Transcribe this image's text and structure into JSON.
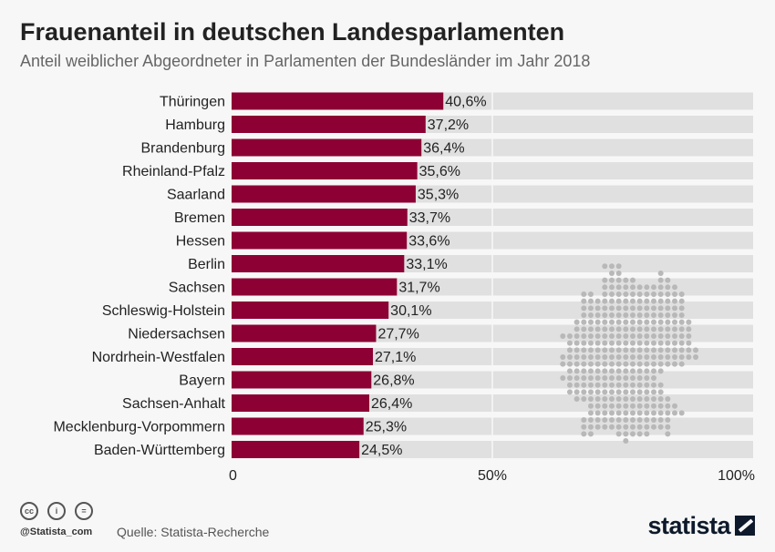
{
  "header": {
    "title": "Frauenanteil in deutschen Landesparlamenten",
    "subtitle": "Anteil weiblicher Abgeordneter in Parlamenten der Bundesländer im Jahr 2018"
  },
  "chart_data": {
    "type": "bar",
    "orientation": "horizontal",
    "categories": [
      "Thüringen",
      "Hamburg",
      "Brandenburg",
      "Rheinland-Pfalz",
      "Saarland",
      "Bremen",
      "Hessen",
      "Berlin",
      "Sachsen",
      "Schleswig-Holstein",
      "Niedersachsen",
      "Nordrhein-Westfalen",
      "Bayern",
      "Sachsen-Anhalt",
      "Mecklenburg-Vorpommern",
      "Baden-Württemberg"
    ],
    "values": [
      40.6,
      37.2,
      36.4,
      35.6,
      35.3,
      33.7,
      33.6,
      33.1,
      31.7,
      30.1,
      27.7,
      27.1,
      26.8,
      26.4,
      25.3,
      24.5
    ],
    "value_labels": [
      "40,6%",
      "37,2%",
      "36,4%",
      "35,6%",
      "35,3%",
      "33,7%",
      "33,6%",
      "33,1%",
      "31,7%",
      "30,1%",
      "27,7%",
      "27,1%",
      "26,8%",
      "26,4%",
      "25,3%",
      "24,5%"
    ],
    "xlim": [
      0,
      100
    ],
    "xticks": [
      0,
      50,
      100
    ],
    "xtick_labels": [
      "0",
      "50%",
      "100%"
    ],
    "bar_color": "#8c0034",
    "track_color": "#e0e0e0"
  },
  "footer": {
    "handle": "@Statista_com",
    "source": "Quelle: Statista-Recherche",
    "logo": "statista",
    "cc_icons": [
      "cc",
      "i",
      "="
    ]
  }
}
